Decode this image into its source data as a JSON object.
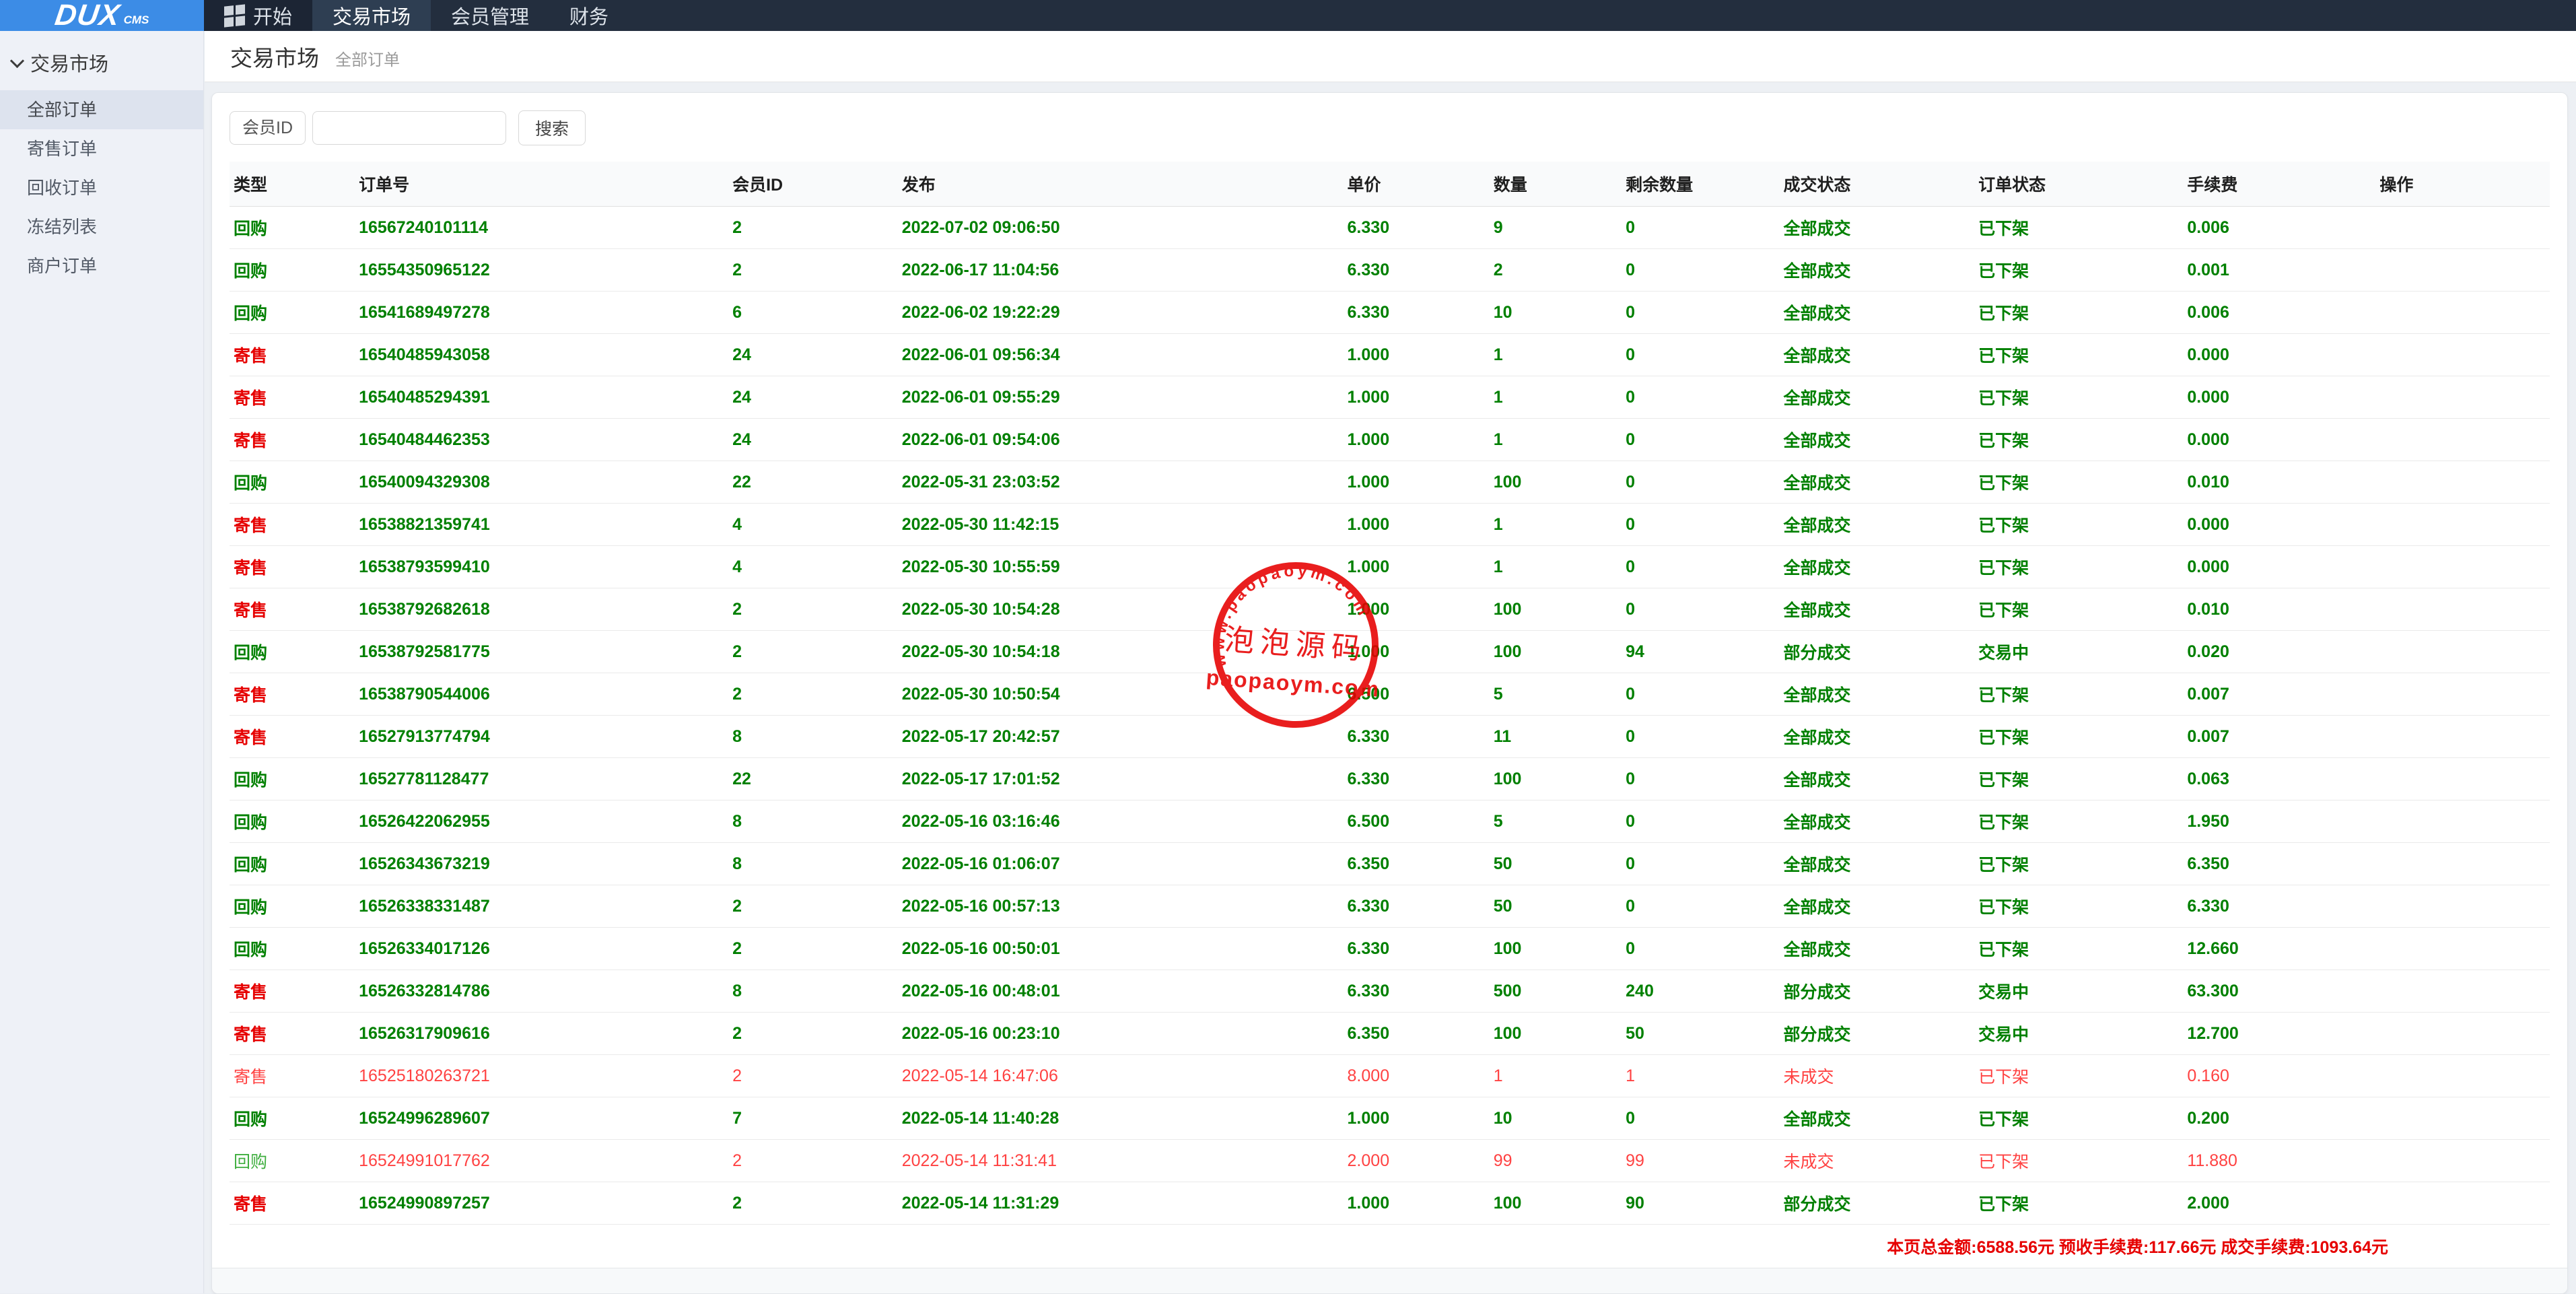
{
  "brand": {
    "logo_main": "DUX",
    "logo_sub": "CMS"
  },
  "navbar": {
    "items": [
      {
        "label": "开始",
        "icon": "windows-icon",
        "active": false
      },
      {
        "label": "交易市场",
        "active": true
      },
      {
        "label": "会员管理",
        "active": false
      },
      {
        "label": "财务",
        "active": false
      }
    ]
  },
  "sidebar": {
    "section": "交易市场",
    "items": [
      {
        "label": "全部订单",
        "active": true
      },
      {
        "label": "寄售订单",
        "active": false
      },
      {
        "label": "回收订单",
        "active": false
      },
      {
        "label": "冻结列表",
        "active": false
      },
      {
        "label": "商户订单",
        "active": false
      }
    ]
  },
  "page": {
    "title": "交易市场",
    "subtitle": "全部订单"
  },
  "search": {
    "label": "会员ID",
    "value": "",
    "button": "搜索"
  },
  "table": {
    "headers": [
      "类型",
      "订单号",
      "会员ID",
      "发布",
      "单价",
      "数量",
      "剩余数量",
      "成交状态",
      "订单状态",
      "手续费",
      "操作"
    ],
    "rows": [
      {
        "type": "回购",
        "order_no": "16567240101114",
        "member_id": "2",
        "published": "2022-07-02 09:06:50",
        "price": "6.330",
        "qty": "9",
        "remaining": "0",
        "deal_status": "全部成交",
        "order_status": "已下架",
        "fee": "0.006",
        "failed": false
      },
      {
        "type": "回购",
        "order_no": "16554350965122",
        "member_id": "2",
        "published": "2022-06-17 11:04:56",
        "price": "6.330",
        "qty": "2",
        "remaining": "0",
        "deal_status": "全部成交",
        "order_status": "已下架",
        "fee": "0.001",
        "failed": false
      },
      {
        "type": "回购",
        "order_no": "16541689497278",
        "member_id": "6",
        "published": "2022-06-02 19:22:29",
        "price": "6.330",
        "qty": "10",
        "remaining": "0",
        "deal_status": "全部成交",
        "order_status": "已下架",
        "fee": "0.006",
        "failed": false
      },
      {
        "type": "寄售",
        "order_no": "16540485943058",
        "member_id": "24",
        "published": "2022-06-01 09:56:34",
        "price": "1.000",
        "qty": "1",
        "remaining": "0",
        "deal_status": "全部成交",
        "order_status": "已下架",
        "fee": "0.000",
        "failed": false
      },
      {
        "type": "寄售",
        "order_no": "16540485294391",
        "member_id": "24",
        "published": "2022-06-01 09:55:29",
        "price": "1.000",
        "qty": "1",
        "remaining": "0",
        "deal_status": "全部成交",
        "order_status": "已下架",
        "fee": "0.000",
        "failed": false
      },
      {
        "type": "寄售",
        "order_no": "16540484462353",
        "member_id": "24",
        "published": "2022-06-01 09:54:06",
        "price": "1.000",
        "qty": "1",
        "remaining": "0",
        "deal_status": "全部成交",
        "order_status": "已下架",
        "fee": "0.000",
        "failed": false
      },
      {
        "type": "回购",
        "order_no": "16540094329308",
        "member_id": "22",
        "published": "2022-05-31 23:03:52",
        "price": "1.000",
        "qty": "100",
        "remaining": "0",
        "deal_status": "全部成交",
        "order_status": "已下架",
        "fee": "0.010",
        "failed": false
      },
      {
        "type": "寄售",
        "order_no": "16538821359741",
        "member_id": "4",
        "published": "2022-05-30 11:42:15",
        "price": "1.000",
        "qty": "1",
        "remaining": "0",
        "deal_status": "全部成交",
        "order_status": "已下架",
        "fee": "0.000",
        "failed": false
      },
      {
        "type": "寄售",
        "order_no": "16538793599410",
        "member_id": "4",
        "published": "2022-05-30 10:55:59",
        "price": "1.000",
        "qty": "1",
        "remaining": "0",
        "deal_status": "全部成交",
        "order_status": "已下架",
        "fee": "0.000",
        "failed": false
      },
      {
        "type": "寄售",
        "order_no": "16538792682618",
        "member_id": "2",
        "published": "2022-05-30 10:54:28",
        "price": "1.000",
        "qty": "100",
        "remaining": "0",
        "deal_status": "全部成交",
        "order_status": "已下架",
        "fee": "0.010",
        "failed": false
      },
      {
        "type": "回购",
        "order_no": "16538792581775",
        "member_id": "2",
        "published": "2022-05-30 10:54:18",
        "price": "1.000",
        "qty": "100",
        "remaining": "94",
        "deal_status": "部分成交",
        "order_status": "交易中",
        "fee": "0.020",
        "failed": false
      },
      {
        "type": "寄售",
        "order_no": "16538790544006",
        "member_id": "2",
        "published": "2022-05-30 10:50:54",
        "price": "6.500",
        "qty": "5",
        "remaining": "0",
        "deal_status": "全部成交",
        "order_status": "已下架",
        "fee": "0.007",
        "failed": false
      },
      {
        "type": "寄售",
        "order_no": "16527913774794",
        "member_id": "8",
        "published": "2022-05-17 20:42:57",
        "price": "6.330",
        "qty": "11",
        "remaining": "0",
        "deal_status": "全部成交",
        "order_status": "已下架",
        "fee": "0.007",
        "failed": false
      },
      {
        "type": "回购",
        "order_no": "16527781128477",
        "member_id": "22",
        "published": "2022-05-17 17:01:52",
        "price": "6.330",
        "qty": "100",
        "remaining": "0",
        "deal_status": "全部成交",
        "order_status": "已下架",
        "fee": "0.063",
        "failed": false
      },
      {
        "type": "回购",
        "order_no": "16526422062955",
        "member_id": "8",
        "published": "2022-05-16 03:16:46",
        "price": "6.500",
        "qty": "5",
        "remaining": "0",
        "deal_status": "全部成交",
        "order_status": "已下架",
        "fee": "1.950",
        "failed": false
      },
      {
        "type": "回购",
        "order_no": "16526343673219",
        "member_id": "8",
        "published": "2022-05-16 01:06:07",
        "price": "6.350",
        "qty": "50",
        "remaining": "0",
        "deal_status": "全部成交",
        "order_status": "已下架",
        "fee": "6.350",
        "failed": false
      },
      {
        "type": "回购",
        "order_no": "16526338331487",
        "member_id": "2",
        "published": "2022-05-16 00:57:13",
        "price": "6.330",
        "qty": "50",
        "remaining": "0",
        "deal_status": "全部成交",
        "order_status": "已下架",
        "fee": "6.330",
        "failed": false
      },
      {
        "type": "回购",
        "order_no": "16526334017126",
        "member_id": "2",
        "published": "2022-05-16 00:50:01",
        "price": "6.330",
        "qty": "100",
        "remaining": "0",
        "deal_status": "全部成交",
        "order_status": "已下架",
        "fee": "12.660",
        "failed": false
      },
      {
        "type": "寄售",
        "order_no": "16526332814786",
        "member_id": "8",
        "published": "2022-05-16 00:48:01",
        "price": "6.330",
        "qty": "500",
        "remaining": "240",
        "deal_status": "部分成交",
        "order_status": "交易中",
        "fee": "63.300",
        "failed": false
      },
      {
        "type": "寄售",
        "order_no": "16526317909616",
        "member_id": "2",
        "published": "2022-05-16 00:23:10",
        "price": "6.350",
        "qty": "100",
        "remaining": "50",
        "deal_status": "部分成交",
        "order_status": "交易中",
        "fee": "12.700",
        "failed": false
      },
      {
        "type": "寄售",
        "order_no": "16525180263721",
        "member_id": "2",
        "published": "2022-05-14 16:47:06",
        "price": "8.000",
        "qty": "1",
        "remaining": "1",
        "deal_status": "未成交",
        "order_status": "已下架",
        "fee": "0.160",
        "failed": true
      },
      {
        "type": "回购",
        "order_no": "16524996289607",
        "member_id": "7",
        "published": "2022-05-14 11:40:28",
        "price": "1.000",
        "qty": "10",
        "remaining": "0",
        "deal_status": "全部成交",
        "order_status": "已下架",
        "fee": "0.200",
        "failed": false
      },
      {
        "type": "回购",
        "order_no": "16524991017762",
        "member_id": "2",
        "published": "2022-05-14 11:31:41",
        "price": "2.000",
        "qty": "99",
        "remaining": "99",
        "deal_status": "未成交",
        "order_status": "已下架",
        "fee": "11.880",
        "failed": true
      },
      {
        "type": "寄售",
        "order_no": "16524990897257",
        "member_id": "2",
        "published": "2022-05-14 11:31:29",
        "price": "1.000",
        "qty": "100",
        "remaining": "90",
        "deal_status": "部分成交",
        "order_status": "已下架",
        "fee": "2.000",
        "failed": false
      }
    ]
  },
  "totals": {
    "text": "本页总金额:6588.56元 预收手续费:117.66元 成交手续费:1093.64元"
  },
  "watermark": {
    "arc_text": "www.paopaoym.com",
    "cn_text": "泡泡源码",
    "domain_text": "paopaoym.com"
  },
  "colors": {
    "green": "#008000",
    "red": "#e60000",
    "fail_red": "#ff4242",
    "fail_green": "#3fae3f",
    "navbar_bg": "#232e3e",
    "navbar_start_bg": "#1c2534",
    "navbar_active_bg": "#2e3e52",
    "logo_bg": "#3c8ce6",
    "page_bg": "#e9edf2",
    "sidebar_bg": "#eef1f7",
    "sidebar_active": "#dde3ee"
  }
}
